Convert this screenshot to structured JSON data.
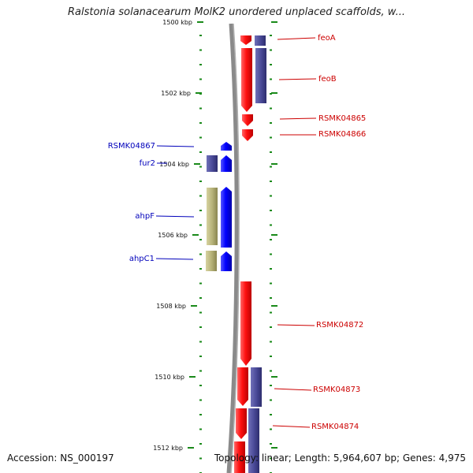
{
  "title": "Ralstonia solanacearum MolK2 unordered unplaced scaffolds, w...",
  "footer": {
    "accession": "Accession: NS_000197",
    "topology": "Topology: linear; Length: 5,964,607 bp; Genes: 4,975"
  },
  "colors": {
    "forward_gene": "#ee1111",
    "reverse_gene": "#1111ee",
    "cds_purple": "#4b4b99",
    "cds_olive": "#b8b47a",
    "tick": "#1a8a1a",
    "spine": "#8a8a8a",
    "label_forward": "#cc0000",
    "label_reverse": "#0000bb"
  },
  "chart_data": {
    "type": "genome_map",
    "scale_unit": "kbp",
    "tick_labels": [
      "1500 kbp",
      "1502 kbp",
      "1504 kbp",
      "1506 kbp",
      "1508 kbp",
      "1510 kbp",
      "1512 kbp"
    ],
    "right_genes": [
      {
        "name": "feoA",
        "strand": "+"
      },
      {
        "name": "feoB",
        "strand": "+"
      },
      {
        "name": "RSMK04865",
        "strand": "+"
      },
      {
        "name": "RSMK04866",
        "strand": "+"
      },
      {
        "name": "RSMK04872",
        "strand": "+"
      },
      {
        "name": "RSMK04873",
        "strand": "+"
      },
      {
        "name": "RSMK04874",
        "strand": "+"
      }
    ],
    "left_genes": [
      {
        "name": "RSMK04867",
        "strand": "-"
      },
      {
        "name": "fur2",
        "strand": "-"
      },
      {
        "name": "ahpF",
        "strand": "-"
      },
      {
        "name": "ahpC1",
        "strand": "-"
      }
    ]
  }
}
